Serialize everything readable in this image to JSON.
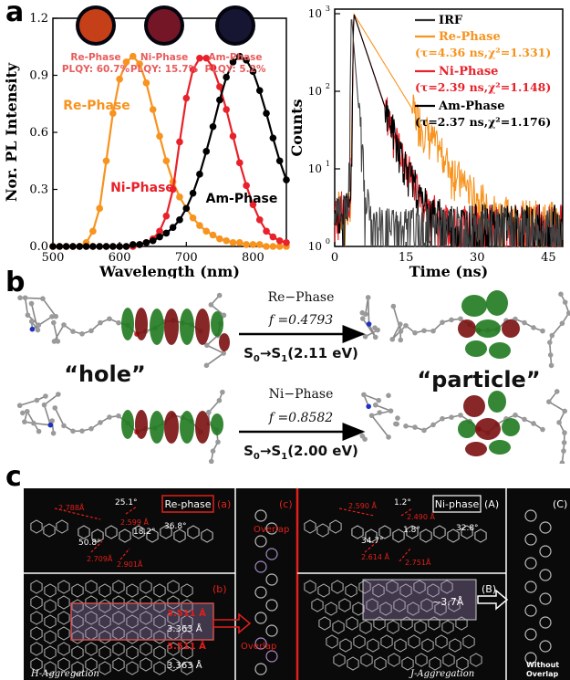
{
  "panel_labels": {
    "a": "a",
    "b": "b",
    "c": "c"
  },
  "colors": {
    "re": "#f7931e",
    "ni": "#e8212a",
    "am": "#000000",
    "irf": "#333333",
    "phase_label": "#e85c5c",
    "dark_panel": "#0a0a0a",
    "red_text": "#e0201a",
    "violet": "#a78bc4"
  },
  "photos": [
    {
      "name": "Re-Phase",
      "plqy": "PLQY: 60.7%",
      "tint": "#e84a1a"
    },
    {
      "name": "Ni-Phase",
      "plqy": "PLQY: 15.7%",
      "tint": "#8a1a2a"
    },
    {
      "name": "Am-Phase",
      "plqy": "PLQY: 5.2%",
      "tint": "#1a1a3a"
    }
  ],
  "chart_data": [
    {
      "type": "line",
      "xlabel": "Wavelength (nm)",
      "ylabel": "Nor. PL Intensity",
      "xlim": [
        500,
        850
      ],
      "ylim": [
        0,
        1.2
      ],
      "xticks": [
        500,
        600,
        700,
        800
      ],
      "yticks": [
        0.0,
        0.3,
        0.6,
        0.9,
        1.2
      ],
      "series": [
        {
          "name": "Re-Phase",
          "color": "#f7931e",
          "label_color": "#f7931e",
          "x": [
            500,
            510,
            520,
            530,
            540,
            550,
            560,
            570,
            580,
            590,
            600,
            610,
            620,
            630,
            640,
            650,
            660,
            670,
            680,
            690,
            700,
            710,
            720,
            730,
            740,
            750,
            760,
            770,
            780,
            790,
            800,
            810,
            820,
            830,
            840,
            850
          ],
          "y": [
            0.0,
            0.0,
            0.0,
            0.0,
            0.0,
            0.02,
            0.08,
            0.2,
            0.45,
            0.7,
            0.88,
            0.97,
            1.0,
            0.96,
            0.86,
            0.72,
            0.58,
            0.45,
            0.34,
            0.26,
            0.2,
            0.15,
            0.11,
            0.08,
            0.06,
            0.04,
            0.03,
            0.02,
            0.02,
            0.01,
            0.01,
            0.01,
            0.0,
            0.0,
            0.0,
            0.0
          ]
        },
        {
          "name": "Ni-Phase",
          "color": "#e8212a",
          "label_color": "#e8212a",
          "x": [
            500,
            510,
            520,
            530,
            540,
            550,
            560,
            570,
            580,
            590,
            600,
            610,
            620,
            630,
            640,
            650,
            660,
            670,
            680,
            690,
            700,
            710,
            720,
            730,
            740,
            750,
            760,
            770,
            780,
            790,
            800,
            810,
            820,
            830,
            840,
            850
          ],
          "y": [
            0.0,
            0.0,
            0.0,
            0.0,
            0.0,
            0.0,
            0.0,
            0.0,
            0.0,
            0.0,
            0.0,
            0.0,
            0.0,
            0.01,
            0.02,
            0.04,
            0.08,
            0.16,
            0.3,
            0.55,
            0.78,
            0.93,
            0.99,
            0.99,
            0.94,
            0.84,
            0.72,
            0.58,
            0.44,
            0.32,
            0.22,
            0.14,
            0.08,
            0.05,
            0.03,
            0.02
          ]
        },
        {
          "name": "Am-Phase",
          "color": "#000000",
          "label_color": "#000000",
          "x": [
            500,
            510,
            520,
            530,
            540,
            550,
            560,
            570,
            580,
            590,
            600,
            610,
            620,
            630,
            640,
            650,
            660,
            670,
            680,
            690,
            700,
            710,
            720,
            730,
            740,
            750,
            760,
            770,
            780,
            790,
            800,
            810,
            820,
            830,
            840,
            850
          ],
          "y": [
            0.0,
            0.0,
            0.0,
            0.0,
            0.0,
            0.0,
            0.0,
            0.0,
            0.0,
            0.0,
            0.0,
            0.0,
            0.01,
            0.01,
            0.02,
            0.03,
            0.05,
            0.07,
            0.1,
            0.14,
            0.2,
            0.28,
            0.38,
            0.5,
            0.63,
            0.77,
            0.89,
            0.97,
            1.0,
            0.98,
            0.92,
            0.82,
            0.7,
            0.57,
            0.45,
            0.35
          ]
        }
      ]
    },
    {
      "type": "line",
      "xlabel": "Time (ns)",
      "ylabel": "Counts",
      "xlim": [
        0,
        48
      ],
      "ylim": [
        1,
        1000
      ],
      "log_y": true,
      "xticks": [
        0,
        15,
        30,
        45
      ],
      "yticks": [
        1,
        10,
        100,
        1000
      ],
      "ytick_labels": [
        "10",
        "10",
        "10",
        "10"
      ],
      "ytick_exps": [
        "0",
        "1",
        "2",
        "3"
      ],
      "legend": [
        {
          "name": "IRF",
          "color": "#333333",
          "note": ""
        },
        {
          "name": "Re-Phase",
          "color": "#f7931e",
          "note": "(τ=4.36 ns,χ²=1.331)"
        },
        {
          "name": "Ni-Phase",
          "color": "#e8212a",
          "note": "(τ=2.39 ns,χ²=1.148)"
        },
        {
          "name": "Am-Phase",
          "color": "#000000",
          "note": "(τ=2.37 ns,χ²=1.176)"
        }
      ],
      "series": [
        {
          "name": "IRF",
          "color": "#444444",
          "t0": 3.5,
          "tau": 0.55,
          "floor": 1.3
        },
        {
          "name": "Re-Phase",
          "color": "#f7931e",
          "t0": 4.0,
          "tau": 4.36,
          "floor": 1.5
        },
        {
          "name": "Ni-Phase",
          "color": "#e8212a",
          "t0": 4.0,
          "tau": 2.39,
          "floor": 1.4
        },
        {
          "name": "Am-Phase",
          "color": "#000000",
          "t0": 4.0,
          "tau": 2.37,
          "floor": 1.4
        }
      ]
    }
  ],
  "panel_b": {
    "re": {
      "phase": "Re−Phase",
      "f": "f =0.4793",
      "transition_prefix": "S",
      "transition_sub0": "0",
      "transition_mid": "→S",
      "transition_sub1": "1",
      "transition_value": "(2.11 eV)"
    },
    "ni": {
      "phase": "Ni−Phase",
      "f": "f =0.8582",
      "transition_prefix": "S",
      "transition_sub0": "0",
      "transition_mid": "→S",
      "transition_sub1": "1",
      "transition_value": "(2.00 eV)"
    },
    "hole": "“hole”",
    "particle": "“particle”"
  },
  "panel_c": {
    "re_tag": "Re-phase",
    "ni_tag": "Ni-phase",
    "re_sub_a": "(a)",
    "re_sub_b": "(b)",
    "re_sub_c": "(c)",
    "ni_sub_a": "(A)",
    "ni_sub_b": "(B)",
    "ni_sub_c": "(C)",
    "re_angles": [
      "25.1°",
      "18.2°",
      "36.8°",
      "50.8°"
    ],
    "re_dist": [
      "2.788Å",
      "2.599 Å",
      "2.709Å",
      "2.901Å"
    ],
    "ni_angles": [
      "1.2°",
      "1.8°",
      "32.8°",
      "34.7°"
    ],
    "ni_dist": [
      "2.590 Å",
      "2.490 Å",
      "2.614 Å",
      "2.751Å"
    ],
    "stack_dist_red": [
      "3.511 Å",
      "3.511 Å"
    ],
    "stack_dist_white": [
      "3.363 Å",
      "3.363 Å"
    ],
    "overlap": "Overlap",
    "overlap2": "Overlap",
    "j_dist": "~3.7Å",
    "h_agg": "H-Aggregation",
    "j_agg": "J-Aggregation",
    "without": "Without",
    "overlap_word": "Overlap"
  }
}
